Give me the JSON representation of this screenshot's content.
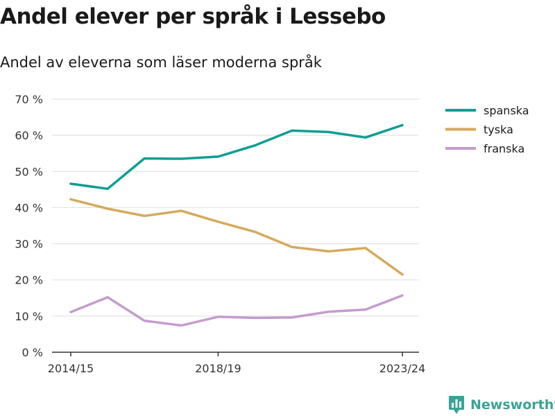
{
  "title": "Andel elever per språk i Lessebo",
  "subtitle": "Andel av eleverna som läser moderna språk",
  "brand": {
    "name": "Newsworthy",
    "icon": "newsworthy-logo-icon",
    "color": "#3aa395"
  },
  "chart_data": {
    "type": "line",
    "x": [
      "2014/15",
      "2015/16",
      "2016/17",
      "2017/18",
      "2018/19",
      "2019/20",
      "2020/21",
      "2021/22",
      "2022/23",
      "2023/24"
    ],
    "x_tick_labels": [
      "2014/15",
      "",
      "",
      "",
      "2018/19",
      "",
      "",
      "",
      "",
      "2023/24"
    ],
    "ylim": [
      0,
      70
    ],
    "y_ticks": [
      0,
      10,
      20,
      30,
      40,
      50,
      60,
      70
    ],
    "y_tick_labels": [
      "0 %",
      "10 %",
      "20 %",
      "30 %",
      "40 %",
      "50 %",
      "60 %",
      "70 %"
    ],
    "grid": true,
    "legend_position": "right",
    "series": [
      {
        "name": "spanska",
        "color": "#0e9e94",
        "values": [
          46.6,
          45.2,
          53.6,
          53.5,
          54.1,
          57.2,
          61.3,
          60.9,
          59.4,
          62.8
        ]
      },
      {
        "name": "tyska",
        "color": "#d4aa5c",
        "values": [
          42.3,
          39.7,
          37.7,
          39.1,
          36.1,
          33.3,
          29.1,
          27.9,
          28.8,
          21.5
        ]
      },
      {
        "name": "franska",
        "color": "#c49cce",
        "values": [
          11.1,
          15.2,
          8.7,
          7.4,
          9.8,
          9.5,
          9.6,
          11.2,
          11.8,
          15.7
        ]
      }
    ]
  }
}
